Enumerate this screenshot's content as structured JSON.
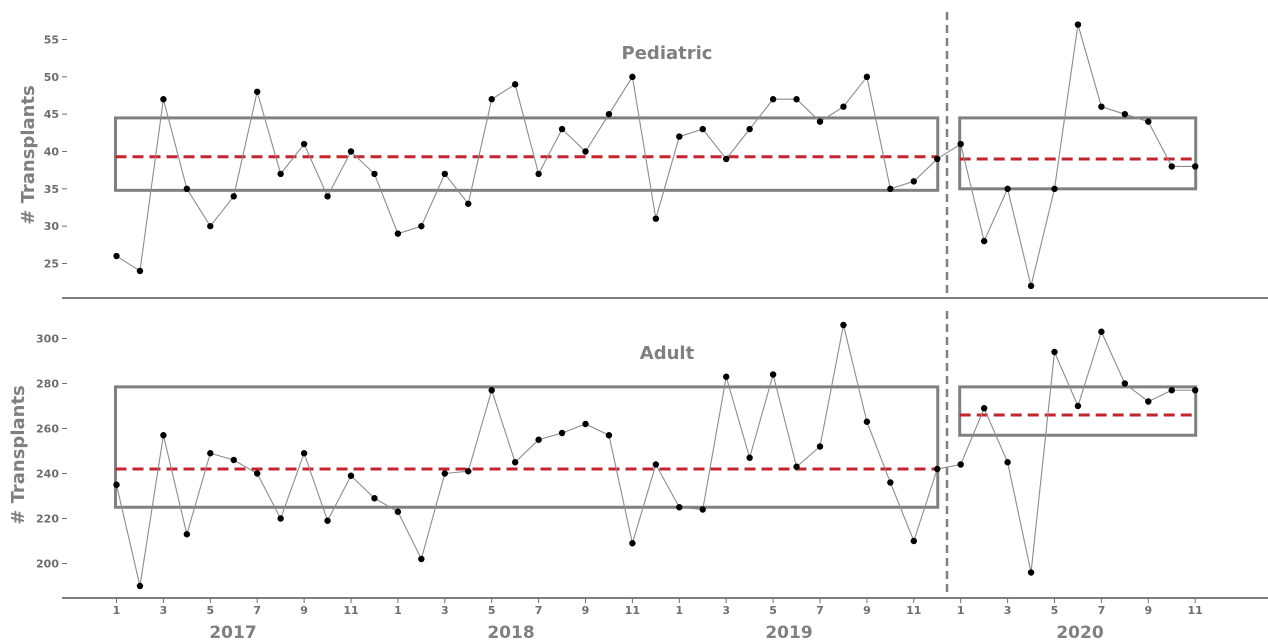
{
  "chart_data": [
    {
      "type": "line",
      "title": "Pediatric",
      "ylabel": "# Transplants",
      "ylim": [
        20,
        57.5
      ],
      "yticks": [
        25,
        30,
        35,
        40,
        45,
        50,
        55
      ],
      "values": [
        26,
        24,
        47,
        35,
        30,
        34,
        48,
        37,
        41,
        34,
        40,
        37,
        29,
        30,
        37,
        33,
        47,
        49,
        37,
        43,
        40,
        45,
        50,
        31,
        42,
        43,
        39,
        43,
        47,
        47,
        44,
        46,
        50,
        35,
        36,
        39,
        41,
        28,
        35,
        22,
        35,
        57,
        46,
        45,
        44,
        38,
        38
      ],
      "control_limits": [
        {
          "start_index": 0,
          "end_index": 35,
          "mean": 39.3,
          "lower": 34.8,
          "upper": 44.5
        },
        {
          "start_index": 36,
          "end_index": 46,
          "mean": 39.0,
          "lower": 35.0,
          "upper": 44.5
        }
      ]
    },
    {
      "type": "line",
      "title": "Adult",
      "ylabel": "# Transplants",
      "ylim": [
        185,
        310
      ],
      "yticks": [
        200,
        220,
        240,
        260,
        280,
        300
      ],
      "values": [
        235,
        190,
        257,
        213,
        249,
        246,
        240,
        220,
        249,
        219,
        239,
        229,
        223,
        202,
        240,
        241,
        277,
        245,
        255,
        258,
        262,
        257,
        209,
        244,
        225,
        224,
        283,
        247,
        284,
        243,
        252,
        306,
        263,
        236,
        210,
        242,
        244,
        269,
        245,
        196,
        294,
        270,
        303,
        280,
        272,
        277,
        277
      ],
      "control_limits": [
        {
          "start_index": 0,
          "end_index": 35,
          "mean": 242,
          "lower": 225,
          "upper": 278.5
        },
        {
          "start_index": 36,
          "end_index": 46,
          "mean": 266,
          "lower": 257,
          "upper": 278.5
        }
      ]
    }
  ],
  "x_axis": {
    "month_tick_labels": [
      "1",
      "3",
      "5",
      "7",
      "9",
      "11",
      "1",
      "3",
      "5",
      "7",
      "9",
      "11",
      "1",
      "3",
      "5",
      "7",
      "9",
      "11",
      "1",
      "3",
      "5",
      "7",
      "9",
      "11"
    ],
    "year_labels": [
      "2017",
      "2018",
      "2019",
      "2020"
    ]
  },
  "colors": {
    "series_line": "#8c8c8c",
    "point": "#000000",
    "mean_line": "#c0262d",
    "control_box": "#808080",
    "divider": "#808080",
    "axis": "#333333"
  }
}
